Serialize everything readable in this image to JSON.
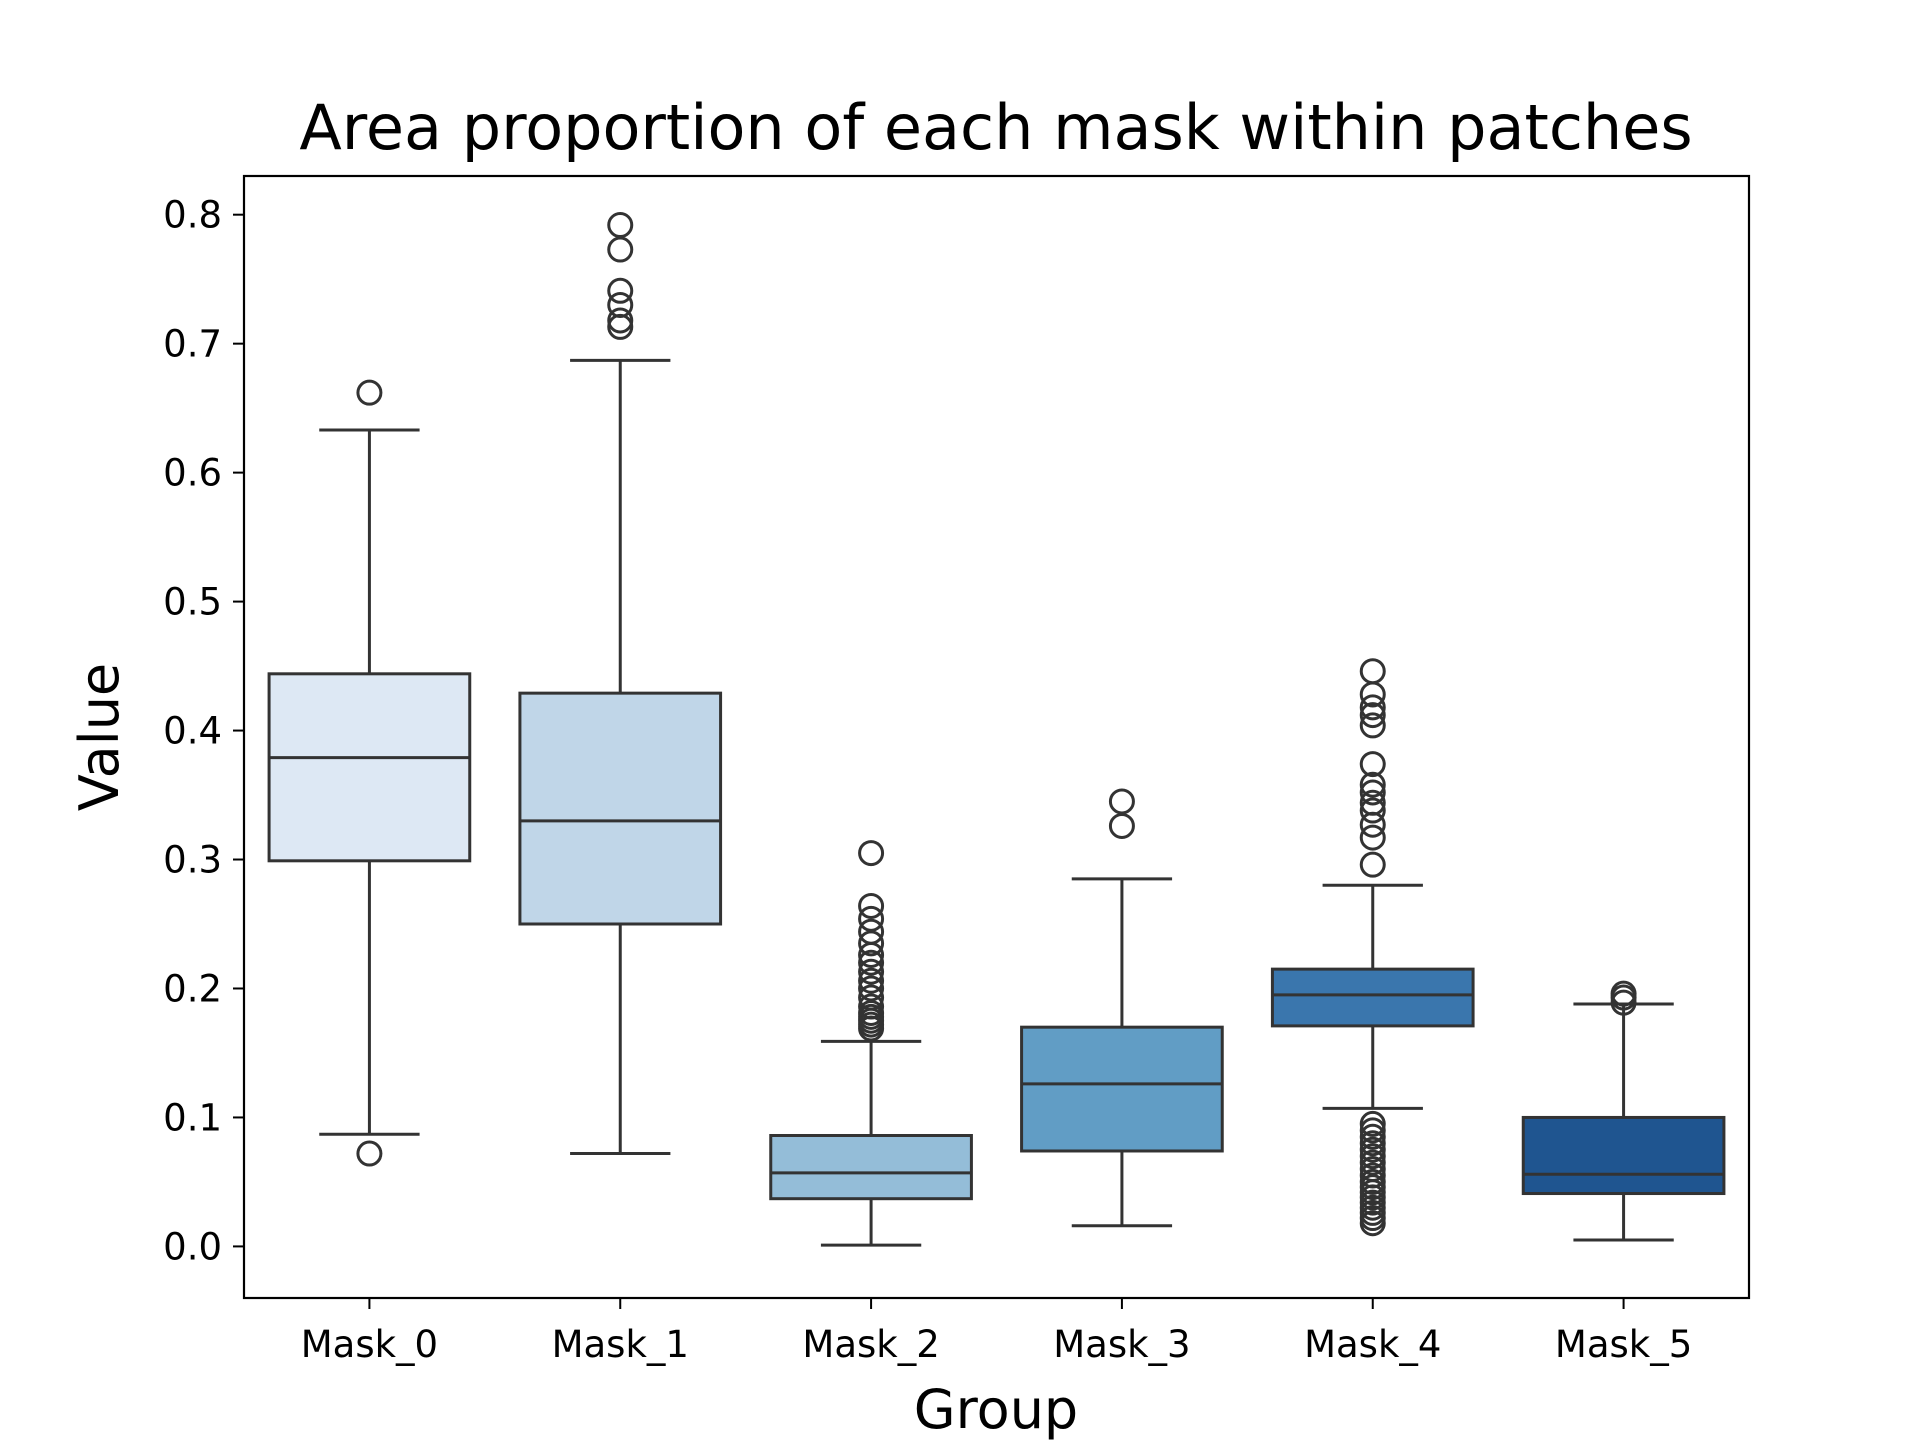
{
  "chart_data": {
    "type": "box",
    "title": "Area proportion of each mask within patches",
    "xlabel": "Group",
    "ylabel": "Value",
    "ylim": [
      -0.04,
      0.83
    ],
    "yticks": [
      "0.0",
      "0.1",
      "0.2",
      "0.3",
      "0.4",
      "0.5",
      "0.6",
      "0.7",
      "0.8"
    ],
    "grid": false,
    "legend": "none",
    "categories": [
      "Mask_0",
      "Mask_1",
      "Mask_2",
      "Mask_3",
      "Mask_4",
      "Mask_5"
    ],
    "series": [
      {
        "category": "Mask_0",
        "color": "#dde8f4",
        "whisker_low": 0.087,
        "q1": 0.299,
        "median": 0.379,
        "q3": 0.444,
        "whisker_high": 0.633,
        "outliers": [
          0.662,
          0.072
        ]
      },
      {
        "category": "Mask_1",
        "color": "#c0d6e8",
        "whisker_low": 0.072,
        "q1": 0.25,
        "median": 0.33,
        "q3": 0.429,
        "whisker_high": 0.687,
        "outliers": [
          0.713,
          0.718,
          0.73,
          0.741,
          0.773,
          0.792
        ]
      },
      {
        "category": "Mask_2",
        "color": "#94bdd8",
        "whisker_low": 0.001,
        "q1": 0.037,
        "median": 0.057,
        "q3": 0.086,
        "whisker_high": 0.159,
        "outliers": [
          0.169,
          0.172,
          0.175,
          0.178,
          0.181,
          0.186,
          0.193,
          0.2,
          0.206,
          0.213,
          0.22,
          0.226,
          0.235,
          0.244,
          0.254,
          0.264,
          0.305
        ]
      },
      {
        "category": "Mask_3",
        "color": "#619dc5",
        "whisker_low": 0.016,
        "q1": 0.074,
        "median": 0.126,
        "q3": 0.17,
        "whisker_high": 0.285,
        "outliers": [
          0.326,
          0.345
        ]
      },
      {
        "category": "Mask_4",
        "color": "#3a76ad",
        "whisker_low": 0.107,
        "q1": 0.171,
        "median": 0.195,
        "q3": 0.215,
        "whisker_high": 0.28,
        "outliers": [
          0.018,
          0.022,
          0.026,
          0.03,
          0.034,
          0.038,
          0.042,
          0.046,
          0.05,
          0.055,
          0.06,
          0.065,
          0.07,
          0.075,
          0.08,
          0.085,
          0.09,
          0.095,
          0.296,
          0.317,
          0.327,
          0.338,
          0.344,
          0.352,
          0.358,
          0.374,
          0.404,
          0.412,
          0.418,
          0.428,
          0.446
        ]
      },
      {
        "category": "Mask_5",
        "color": "#1f5590",
        "whisker_low": 0.005,
        "q1": 0.041,
        "median": 0.056,
        "q3": 0.1,
        "whisker_high": 0.188,
        "outliers": [
          0.189,
          0.193,
          0.196
        ]
      }
    ]
  }
}
